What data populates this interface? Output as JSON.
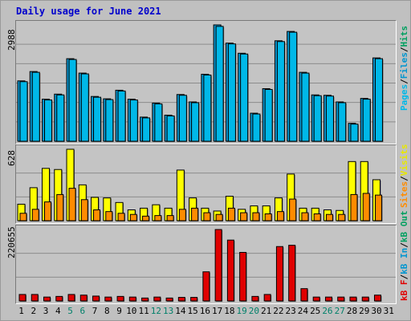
{
  "title": "Daily usage for June 2021",
  "colors": {
    "pages": "#00b8e8",
    "files": "#0096d0",
    "hits": "#00a060",
    "visits": "#ffff00",
    "sites": "#ff8c00",
    "kb_f": "#e00000",
    "kb_in": "#0096d0",
    "kb_out": "#00a060",
    "weekend": "#00806a",
    "weekday": "#000000"
  },
  "legend": {
    "hits_panel": [
      "Pages",
      "/",
      "Files",
      "/",
      "Hits"
    ],
    "visits_panel": [
      "Sites",
      "/",
      "Visits"
    ],
    "kb_panel": [
      "kB F",
      "/",
      "kB In",
      "/",
      "kB Out"
    ]
  },
  "chart_data": [
    {
      "type": "bar",
      "name": "hits_files_pages",
      "ymax_label": "2988",
      "ylim": [
        0,
        2988
      ],
      "grid": true,
      "x": [
        1,
        2,
        3,
        4,
        5,
        6,
        7,
        8,
        9,
        10,
        11,
        12,
        13,
        14,
        15,
        16,
        17,
        18,
        19,
        20,
        21,
        22,
        23,
        24,
        25,
        26,
        27,
        28,
        29,
        30,
        31
      ],
      "series": [
        {
          "name": "Files",
          "values": [
            1550,
            1790,
            1080,
            1210,
            2120,
            1750,
            1150,
            1090,
            1310,
            1080,
            620,
            980,
            670,
            1200,
            1010,
            1720,
            2988,
            2520,
            2260,
            720,
            1350,
            2580,
            2820,
            1770,
            1190,
            1180,
            1010,
            460,
            1100,
            2140,
            null
          ]
        },
        {
          "name": "Pages",
          "values": [
            1530,
            1770,
            1060,
            1190,
            2100,
            1730,
            1130,
            1070,
            1290,
            1060,
            600,
            960,
            650,
            1180,
            990,
            1700,
            2950,
            2500,
            2240,
            700,
            1330,
            2560,
            2800,
            1750,
            1170,
            1160,
            990,
            440,
            1080,
            2120,
            null
          ]
        }
      ]
    },
    {
      "type": "bar",
      "name": "visits_sites",
      "ymax_label": "628",
      "ylim": [
        0,
        628
      ],
      "grid": true,
      "x": [
        1,
        2,
        3,
        4,
        5,
        6,
        7,
        8,
        9,
        10,
        11,
        12,
        13,
        14,
        15,
        16,
        17,
        18,
        19,
        20,
        21,
        22,
        23,
        24,
        25,
        26,
        27,
        28,
        29,
        30,
        31
      ],
      "series": [
        {
          "name": "Visits",
          "values": [
            145,
            290,
            460,
            450,
            628,
            315,
            205,
            200,
            160,
            95,
            110,
            140,
            110,
            445,
            200,
            110,
            85,
            215,
            100,
            130,
            130,
            200,
            410,
            110,
            110,
            95,
            90,
            520,
            520,
            360,
            null
          ]
        },
        {
          "name": "Sites",
          "values": [
            65,
            100,
            165,
            230,
            285,
            185,
            95,
            80,
            65,
            55,
            40,
            45,
            45,
            100,
            110,
            70,
            55,
            110,
            70,
            70,
            60,
            80,
            190,
            70,
            60,
            55,
            55,
            230,
            240,
            225,
            null
          ]
        }
      ]
    },
    {
      "type": "bar",
      "name": "kbytes",
      "ymax_label": "220655",
      "ylim": [
        0,
        220655
      ],
      "grid": true,
      "x": [
        1,
        2,
        3,
        4,
        5,
        6,
        7,
        8,
        9,
        10,
        11,
        12,
        13,
        14,
        15,
        16,
        17,
        18,
        19,
        20,
        21,
        22,
        23,
        24,
        25,
        26,
        27,
        28,
        29,
        30,
        31
      ],
      "series": [
        {
          "name": "kB F",
          "values": [
            20000,
            20000,
            12000,
            14000,
            20000,
            18000,
            15000,
            12000,
            14000,
            12000,
            9000,
            12000,
            9000,
            11000,
            11000,
            90000,
            220655,
            188000,
            150000,
            14000,
            20000,
            168000,
            172000,
            38000,
            12000,
            12000,
            12000,
            12000,
            12000,
            18000,
            null
          ]
        }
      ]
    }
  ]
}
